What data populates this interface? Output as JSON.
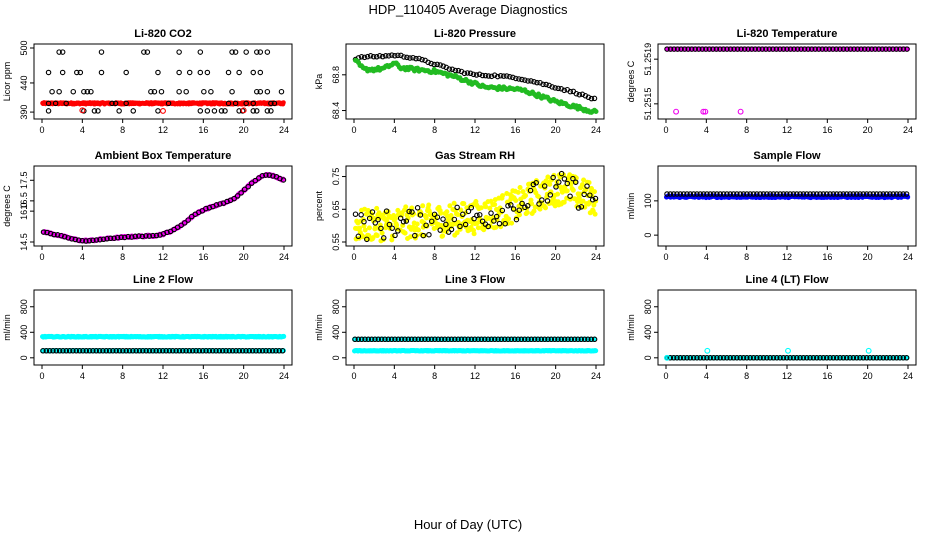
{
  "figure": {
    "title": "HDP_110405  Average Diagnostics",
    "footer_xlabel": "Hour of Day (UTC)"
  },
  "colors": {
    "black": "#000000",
    "red": "#ff0000",
    "green": "#22bb22",
    "magenta": "#ee00ee",
    "yellow": "#ffff00",
    "blue": "#0000ff",
    "cyan": "#00ffff"
  },
  "chart_data": [
    {
      "id": "co2",
      "type": "scatter",
      "title": "Li-820 CO2",
      "ylabel": "Licor ppm",
      "xlim": [
        0,
        24
      ],
      "ylim": [
        385,
        500
      ],
      "x_ticks": [
        0,
        4,
        8,
        12,
        16,
        20,
        24
      ],
      "y_ticks": [
        {
          "v": 500,
          "label": "500"
        },
        {
          "v": 440,
          "label": "440"
        },
        {
          "v": 390,
          "label": "390"
        }
      ],
      "series": [
        {
          "color": "red",
          "style": "dense-band",
          "y": 405,
          "spread": 3.0
        },
        {
          "color": "black",
          "style": "sparse",
          "levels": [
            493,
            458,
            425,
            405,
            392
          ],
          "density": 0.22
        },
        {
          "color": "red",
          "style": "points",
          "points": [
            [
              4.0,
              393
            ],
            [
              12.0,
              392
            ],
            [
              20.0,
              393
            ]
          ]
        }
      ]
    },
    {
      "id": "pressure",
      "type": "scatter",
      "title": "Li-820 Pressure",
      "ylabel": "kPa",
      "xlim": [
        0,
        24
      ],
      "ylim": [
        68.35,
        69.1
      ],
      "x_ticks": [
        0,
        4,
        8,
        12,
        16,
        20,
        24
      ],
      "y_ticks": [
        {
          "v": 68.4,
          "label": "68.4"
        },
        {
          "v": 68.8,
          "label": "68.8"
        }
      ],
      "series": [
        {
          "color": "black",
          "style": "curve",
          "curve": [
            [
              0.2,
              68.98
            ],
            [
              1.0,
              69.0
            ],
            [
              3.0,
              69.01
            ],
            [
              4.0,
              69.02
            ],
            [
              6.0,
              68.99
            ],
            [
              8.0,
              68.92
            ],
            [
              10.0,
              68.85
            ],
            [
              12.0,
              68.8
            ],
            [
              14.0,
              68.79
            ],
            [
              16.0,
              68.77
            ],
            [
              18.0,
              68.72
            ],
            [
              20.0,
              68.66
            ],
            [
              22.0,
              68.6
            ],
            [
              24.0,
              68.52
            ]
          ],
          "step": 0.3,
          "noise": 0.01
        },
        {
          "color": "green",
          "style": "curve",
          "curve": [
            [
              0.2,
              68.95
            ],
            [
              0.6,
              68.9
            ],
            [
              1.0,
              68.86
            ],
            [
              2.0,
              68.86
            ],
            [
              3.0,
              68.87
            ],
            [
              4.0,
              68.93
            ],
            [
              4.6,
              68.88
            ],
            [
              6.0,
              68.86
            ],
            [
              8.0,
              68.84
            ],
            [
              10.0,
              68.78
            ],
            [
              11.0,
              68.74
            ],
            [
              12.0,
              68.7
            ],
            [
              13.0,
              68.66
            ],
            [
              16.0,
              68.64
            ],
            [
              17.0,
              68.62
            ],
            [
              18.0,
              68.58
            ],
            [
              20.0,
              68.5
            ],
            [
              22.0,
              68.44
            ],
            [
              24.0,
              68.38
            ]
          ],
          "step": 0.15,
          "noise": 0.02
        }
      ]
    },
    {
      "id": "li820-temp",
      "type": "scatter",
      "title": "Li-820 Temperature",
      "ylabel": "degrees C",
      "xlim": [
        0,
        24
      ],
      "ylim": [
        51.2514,
        51.252
      ],
      "x_ticks": [
        0,
        4,
        8,
        12,
        16,
        20,
        24
      ],
      "y_ticks": [
        {
          "v": 51.2515,
          "label": "51.2515"
        },
        {
          "v": 51.2519,
          "label": "51.2519"
        }
      ],
      "series": [
        {
          "color": "magenta",
          "style": "flat",
          "y": 51.25199,
          "step": 0.15
        },
        {
          "color": "black",
          "style": "flat",
          "y": 51.25199,
          "step": 0.35
        },
        {
          "color": "magenta",
          "style": "points",
          "points": [
            [
              1.0,
              51.25143
            ],
            [
              3.7,
              51.25143
            ],
            [
              3.9,
              51.25143
            ],
            [
              7.4,
              51.25143
            ]
          ]
        }
      ]
    },
    {
      "id": "ambient-temp",
      "type": "scatter",
      "title": "Ambient Box Temperature",
      "ylabel": "degrees C",
      "xlim": [
        0,
        24
      ],
      "ylim": [
        14.5,
        18.0
      ],
      "x_ticks": [
        0,
        4,
        8,
        12,
        16,
        20,
        24
      ],
      "y_ticks": [
        {
          "v": 14.5,
          "label": "14.5"
        },
        {
          "v": 16.0,
          "label": "16.0"
        },
        {
          "v": 16.5,
          "label": "16.5"
        },
        {
          "v": 17.5,
          "label": "17.5"
        }
      ],
      "series": [
        {
          "color": "magenta",
          "style": "curve",
          "curve": [
            [
              0.2,
              15.0
            ],
            [
              1.0,
              14.9
            ],
            [
              2.0,
              14.78
            ],
            [
              3.0,
              14.65
            ],
            [
              4.0,
              14.56
            ],
            [
              5.0,
              14.58
            ],
            [
              6.0,
              14.64
            ],
            [
              7.0,
              14.69
            ],
            [
              8.0,
              14.73
            ],
            [
              9.0,
              14.76
            ],
            [
              10.0,
              14.78
            ],
            [
              11.0,
              14.8
            ],
            [
              12.0,
              14.88
            ],
            [
              13.0,
              15.06
            ],
            [
              14.0,
              15.38
            ],
            [
              15.0,
              15.78
            ],
            [
              16.0,
              16.06
            ],
            [
              17.0,
              16.24
            ],
            [
              18.0,
              16.38
            ],
            [
              19.0,
              16.58
            ],
            [
              20.0,
              17.0
            ],
            [
              21.0,
              17.45
            ],
            [
              22.0,
              17.77
            ],
            [
              23.0,
              17.72
            ],
            [
              24.0,
              17.5
            ]
          ],
          "step": 0.12,
          "noise": 0.04
        },
        {
          "color": "black",
          "style": "curve",
          "curve": [
            [
              0.2,
              15.0
            ],
            [
              1.0,
              14.9
            ],
            [
              2.0,
              14.78
            ],
            [
              3.0,
              14.65
            ],
            [
              4.0,
              14.56
            ],
            [
              5.0,
              14.58
            ],
            [
              6.0,
              14.64
            ],
            [
              7.0,
              14.69
            ],
            [
              8.0,
              14.73
            ],
            [
              9.0,
              14.76
            ],
            [
              10.0,
              14.78
            ],
            [
              11.0,
              14.8
            ],
            [
              12.0,
              14.88
            ],
            [
              13.0,
              15.06
            ],
            [
              14.0,
              15.38
            ],
            [
              15.0,
              15.78
            ],
            [
              16.0,
              16.06
            ],
            [
              17.0,
              16.24
            ],
            [
              18.0,
              16.38
            ],
            [
              19.0,
              16.58
            ],
            [
              20.0,
              17.0
            ],
            [
              21.0,
              17.45
            ],
            [
              22.0,
              17.77
            ],
            [
              23.0,
              17.72
            ],
            [
              24.0,
              17.5
            ]
          ],
          "step": 0.35,
          "noise": 0.02
        }
      ]
    },
    {
      "id": "rh",
      "type": "scatter",
      "title": "Gas Stream RH",
      "ylabel": "percent",
      "xlim": [
        0,
        24
      ],
      "ylim": [
        0.55,
        0.77
      ],
      "x_ticks": [
        0,
        4,
        8,
        12,
        16,
        20,
        24
      ],
      "y_ticks": [
        {
          "v": 0.55,
          "label": "0.55"
        },
        {
          "v": 0.65,
          "label": "0.65"
        },
        {
          "v": 0.75,
          "label": "0.75"
        }
      ],
      "series": [
        {
          "color": "yellow",
          "style": "curve",
          "curve": [
            [
              0.0,
              0.6
            ],
            [
              4.0,
              0.605
            ],
            [
              8.0,
              0.615
            ],
            [
              12.0,
              0.625
            ],
            [
              14.0,
              0.64
            ],
            [
              16.0,
              0.66
            ],
            [
              18.0,
              0.69
            ],
            [
              20.0,
              0.71
            ],
            [
              21.0,
              0.72
            ],
            [
              22.0,
              0.7
            ],
            [
              24.0,
              0.68
            ]
          ],
          "step": 0.06,
          "noise": 0.05
        },
        {
          "color": "black",
          "style": "curve",
          "curve": [
            [
              0.0,
              0.6
            ],
            [
              4.0,
              0.605
            ],
            [
              8.0,
              0.615
            ],
            [
              12.0,
              0.625
            ],
            [
              14.0,
              0.64
            ],
            [
              16.0,
              0.66
            ],
            [
              18.0,
              0.69
            ],
            [
              20.0,
              0.71
            ],
            [
              21.0,
              0.72
            ],
            [
              22.0,
              0.7
            ],
            [
              24.0,
              0.68
            ]
          ],
          "step": 0.28,
          "noise": 0.045
        }
      ]
    },
    {
      "id": "sample-flow",
      "type": "scatter",
      "title": "Sample Flow",
      "ylabel": "ml/min",
      "xlim": [
        0,
        24
      ],
      "ylim": [
        -20,
        190
      ],
      "x_ticks": [
        0,
        4,
        8,
        12,
        16,
        20,
        24
      ],
      "y_ticks": [
        {
          "v": 0,
          "label": "0"
        },
        {
          "v": 100,
          "label": "100"
        }
      ],
      "series": [
        {
          "color": "blue",
          "style": "band",
          "y": 112,
          "spread": 5.0,
          "step": 0.08
        },
        {
          "color": "black",
          "style": "flat",
          "y": 120,
          "step": 0.33
        }
      ]
    },
    {
      "id": "line2",
      "type": "scatter",
      "title": "Line 2 Flow",
      "ylabel": "ml/min",
      "xlim": [
        0,
        24
      ],
      "ylim": [
        -50,
        1000
      ],
      "x_ticks": [
        0,
        4,
        8,
        12,
        16,
        20,
        24
      ],
      "y_ticks": [
        {
          "v": 0,
          "label": "0"
        },
        {
          "v": 400,
          "label": "400"
        },
        {
          "v": 800,
          "label": "800"
        }
      ],
      "series": [
        {
          "color": "cyan",
          "style": "band",
          "y": 330,
          "spread": 12,
          "step": 0.08
        },
        {
          "color": "cyan",
          "style": "band",
          "y": 110,
          "spread": 6,
          "step": 0.1
        },
        {
          "color": "black",
          "style": "flat",
          "y": 110,
          "step": 0.33
        }
      ]
    },
    {
      "id": "line3",
      "type": "scatter",
      "title": "Line 3 Flow",
      "ylabel": "ml/min",
      "xlim": [
        0,
        24
      ],
      "ylim": [
        -50,
        1000
      ],
      "x_ticks": [
        0,
        4,
        8,
        12,
        16,
        20,
        24
      ],
      "y_ticks": [
        {
          "v": 0,
          "label": "0"
        },
        {
          "v": 400,
          "label": "400"
        },
        {
          "v": 800,
          "label": "800"
        }
      ],
      "series": [
        {
          "color": "cyan",
          "style": "band",
          "y": 110,
          "spread": 8,
          "step": 0.08
        },
        {
          "color": "cyan",
          "style": "band",
          "y": 290,
          "spread": 5,
          "step": 0.2
        },
        {
          "color": "black",
          "style": "flat",
          "y": 290,
          "step": 0.33
        }
      ]
    },
    {
      "id": "line4",
      "type": "scatter",
      "title": "Line 4 (LT) Flow",
      "ylabel": "ml/min",
      "xlim": [
        0,
        24
      ],
      "ylim": [
        -50,
        1000
      ],
      "x_ticks": [
        0,
        4,
        8,
        12,
        16,
        20,
        24
      ],
      "y_ticks": [
        {
          "v": 0,
          "label": "0"
        },
        {
          "v": 400,
          "label": "400"
        },
        {
          "v": 800,
          "label": "800"
        }
      ],
      "series": [
        {
          "color": "cyan",
          "style": "flat",
          "y": 0,
          "step": 0.2
        },
        {
          "color": "black",
          "style": "flat",
          "y": 0,
          "step": 0.33
        },
        {
          "color": "cyan",
          "style": "points",
          "points": [
            [
              0.1,
              0
            ],
            [
              4.1,
              110
            ],
            [
              12.1,
              110
            ],
            [
              20.1,
              110
            ]
          ]
        }
      ]
    }
  ]
}
